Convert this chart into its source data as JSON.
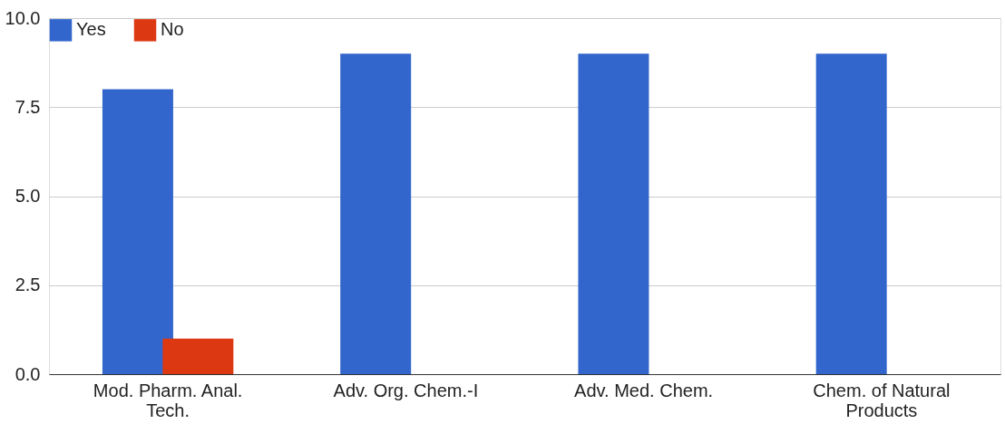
{
  "chart_data": {
    "type": "bar",
    "categories": [
      "Mod. Pharm. Anal. Tech.",
      "Adv. Org. Chem.-I",
      "Adv. Med. Chem.",
      "Chem. of Natural Products"
    ],
    "series": [
      {
        "name": "Yes",
        "color": "#3366cc",
        "values": [
          8,
          9,
          9,
          9
        ]
      },
      {
        "name": "No",
        "color": "#dc3912",
        "values": [
          1,
          0,
          0,
          0
        ]
      }
    ],
    "ylim": [
      0,
      10
    ],
    "yticks": [
      {
        "value": 0,
        "label": "0.0"
      },
      {
        "value": 2.5,
        "label": "2.5"
      },
      {
        "value": 5,
        "label": "5.0"
      },
      {
        "value": 7.5,
        "label": "7.5"
      },
      {
        "value": 10,
        "label": "10.0"
      }
    ],
    "grid": "y",
    "legend": "top left"
  }
}
